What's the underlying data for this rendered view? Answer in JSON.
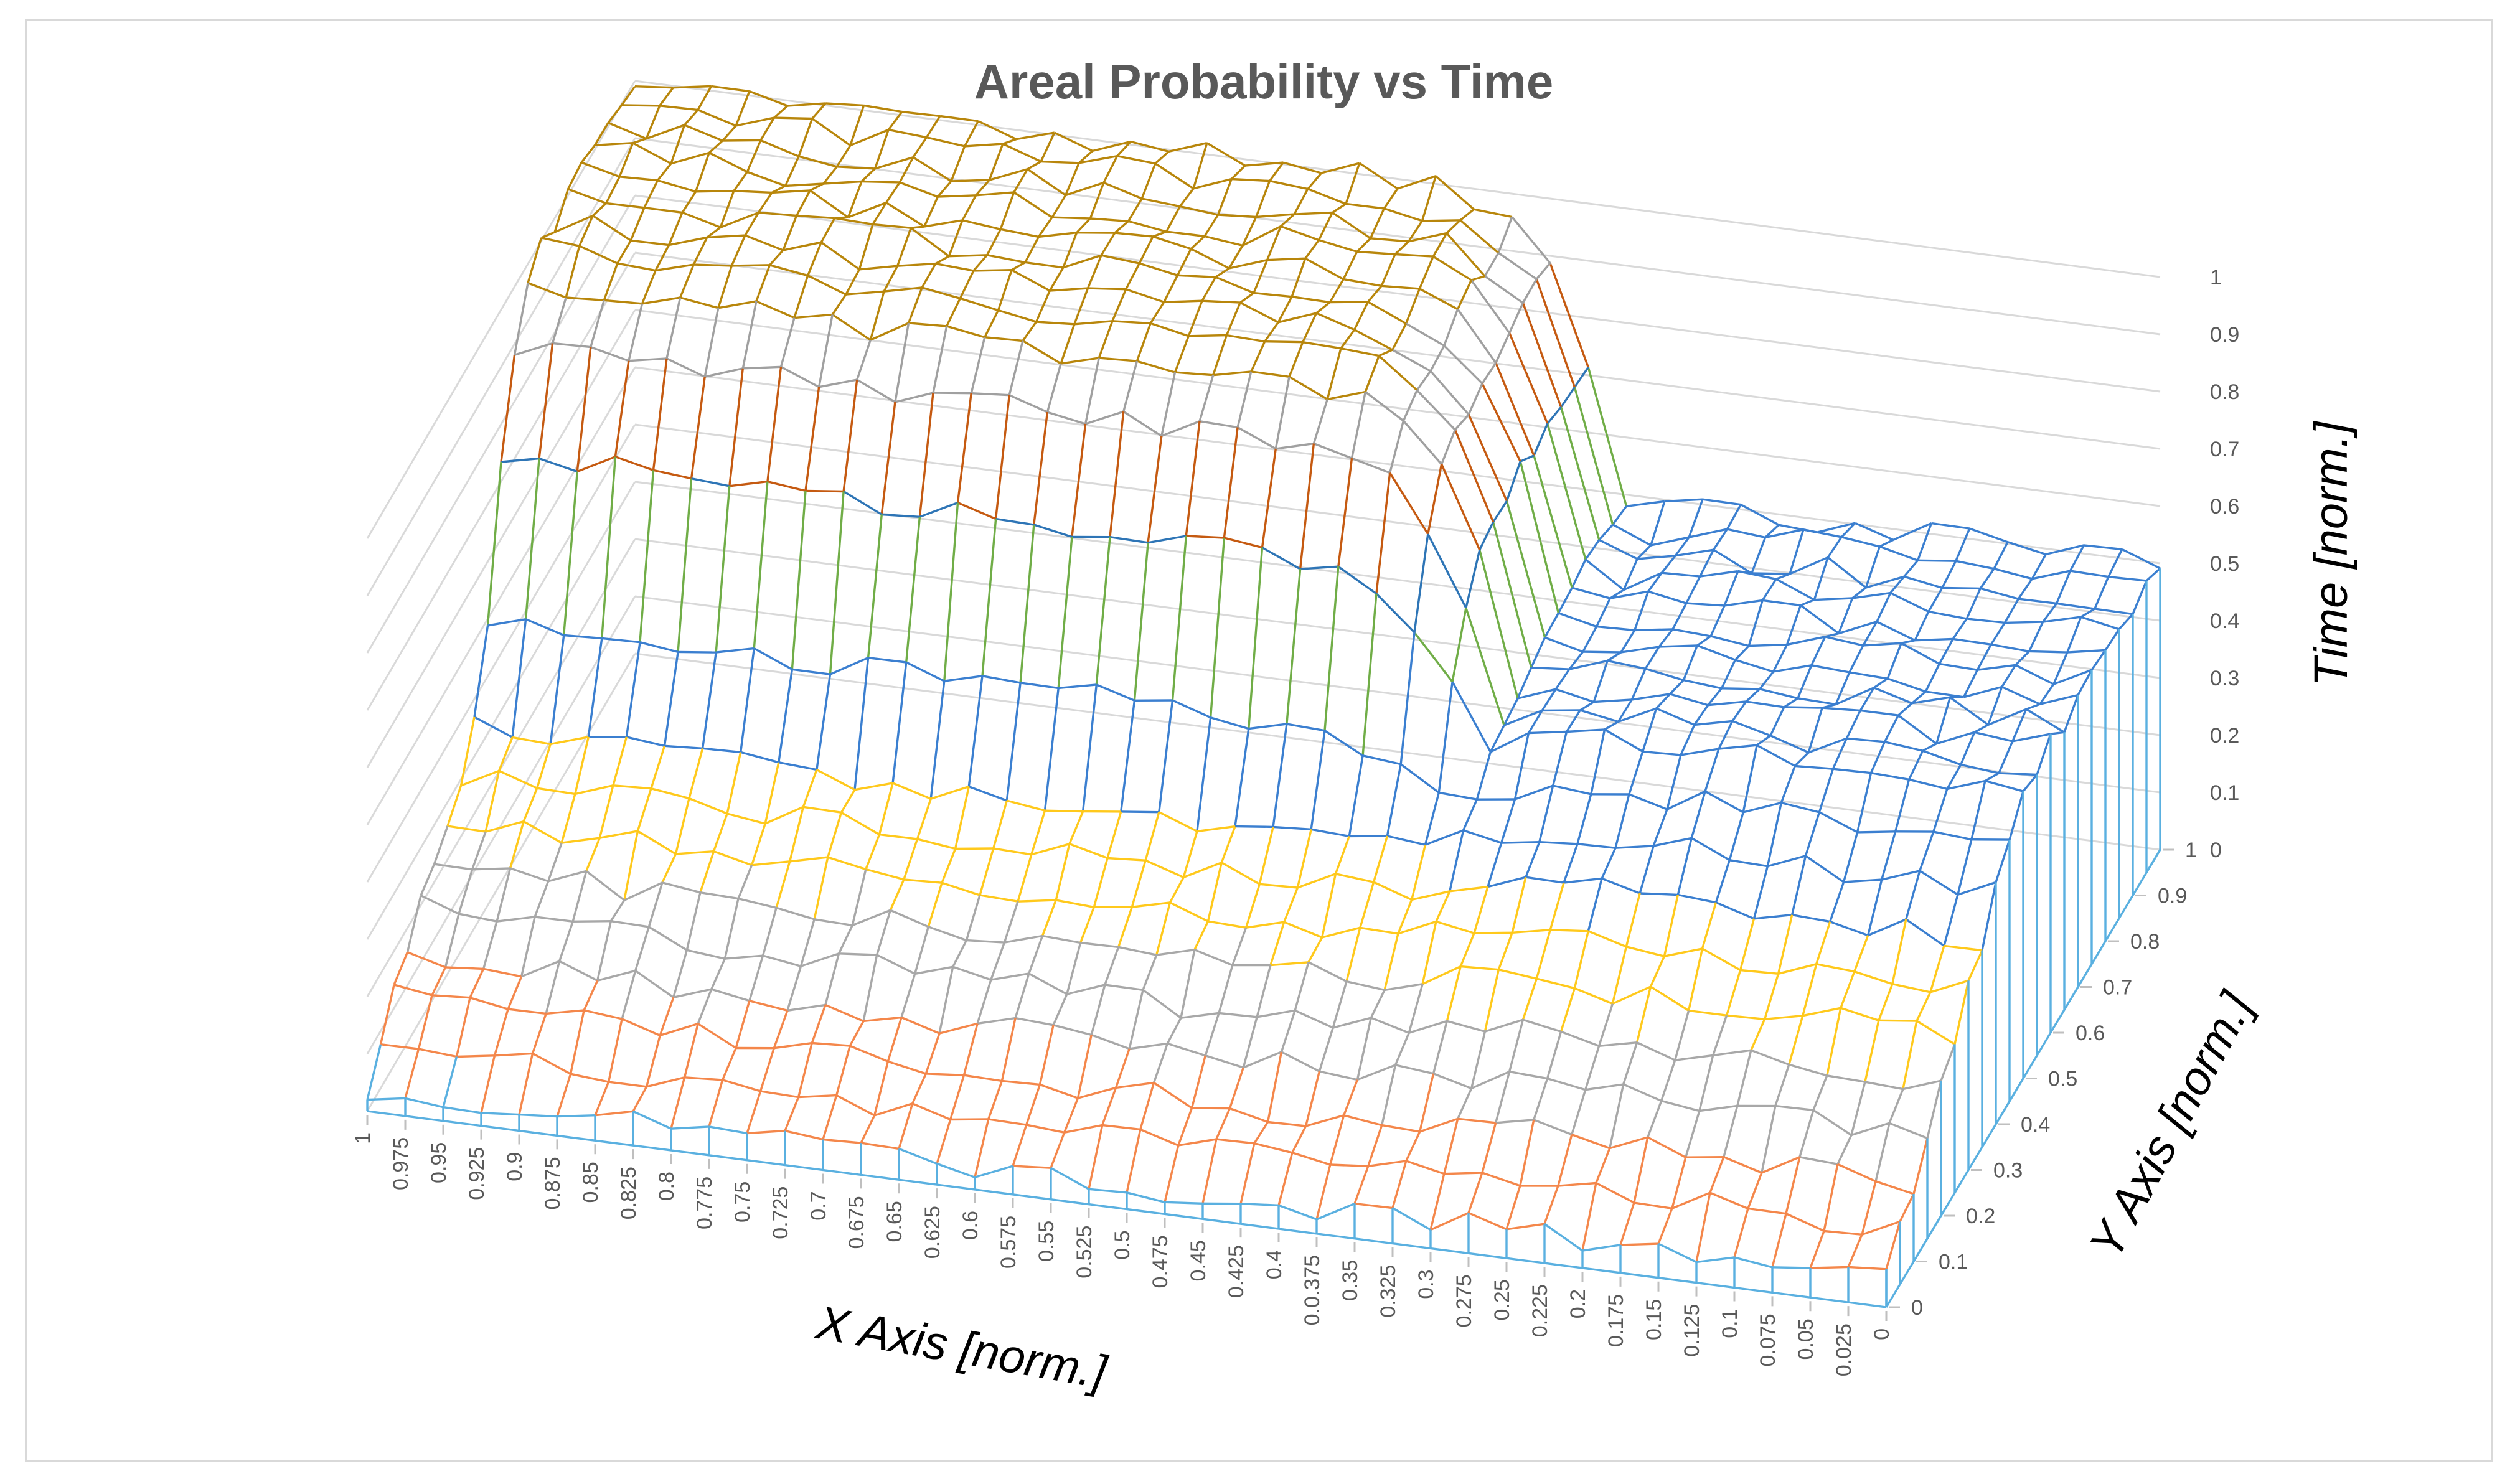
{
  "chart_data": {
    "type": "surface",
    "title": "Areal Probability vs Time",
    "xlabel": "X Axis [norm.]",
    "ylabel": "Y Axis [norm.]",
    "zlabel": "Time [norm.]",
    "x_ticks": [
      "1",
      "0.975",
      "0.95",
      "0.925",
      "0.9",
      "0.875",
      "0.85",
      "0.825",
      "0.8",
      "0.775",
      "0.75",
      "0.725",
      "0.7",
      "0.675",
      "0.65",
      "0.625",
      "0.6",
      "0.575",
      "0.55",
      "0.525",
      "0.5",
      "0.475",
      "0.45",
      "0.425",
      "0.4",
      "0.0.375",
      "0.35",
      "0.325",
      "0.3",
      "0.275",
      "0.25",
      "0.225",
      "0.2",
      "0.175",
      "0.15",
      "0.125",
      "0.1",
      "0.075",
      "0.05",
      "0.025",
      "0"
    ],
    "y_ticks": [
      "0",
      "0.1",
      "0.2",
      "0.3",
      "0.4",
      "0.5",
      "0.6",
      "0.7",
      "0.8",
      "0.9",
      "1"
    ],
    "z_ticks": [
      "0",
      "0.1",
      "0.2",
      "0.3",
      "0.4",
      "0.5",
      "0.6",
      "0.7",
      "0.8",
      "0.9",
      "1"
    ],
    "xlim": [
      0,
      1
    ],
    "ylim": [
      0,
      1
    ],
    "zlim": [
      0,
      1
    ],
    "band_colors": [
      "#5ab0e0",
      "#f4874b",
      "#a8a8a8",
      "#ffc91c",
      "#3b7fd0",
      "#3b7fd0",
      "#70ad47",
      "#2e75b6",
      "#c55a11",
      "#a0a0a0",
      "#b8860b"
    ],
    "description_of_surface": {
      "plateau_region": {
        "x_range": [
          0.35,
          1.0
        ],
        "y_range": [
          0.45,
          1.0
        ],
        "time_peak": 1.0
      },
      "lower_region": {
        "x_range": [
          0.0,
          0.35
        ],
        "y_range": [
          0.0,
          1.0
        ],
        "time_peak": 0.5
      },
      "front_edge_time": 0.05
    }
  }
}
